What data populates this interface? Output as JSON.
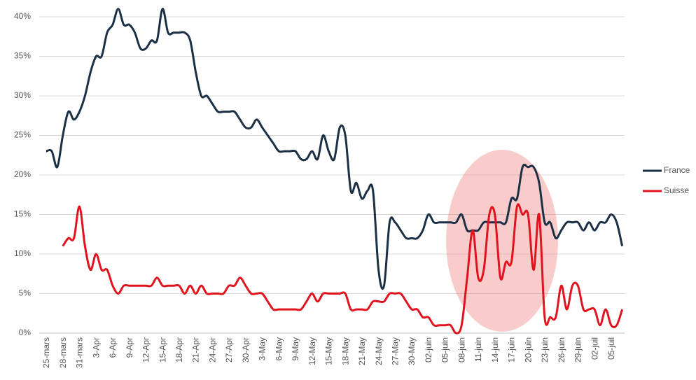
{
  "chart_data": {
    "type": "line",
    "categories": [
      "25-mars",
      null,
      null,
      "28-mars",
      null,
      null,
      "31-mars",
      null,
      null,
      "3-Apr",
      null,
      null,
      "6-Apr",
      null,
      null,
      "9-Apr",
      null,
      null,
      "12-Apr",
      null,
      null,
      "15-Apr",
      null,
      null,
      "18-Apr",
      null,
      null,
      "21-Apr",
      null,
      null,
      "24-Apr",
      null,
      null,
      "27-Apr",
      null,
      null,
      "30-Apr",
      null,
      null,
      "3-May",
      null,
      null,
      "6-May",
      null,
      null,
      "9-May",
      null,
      null,
      "12-May",
      null,
      null,
      "15-May",
      null,
      null,
      "18-May",
      null,
      null,
      "21-May",
      null,
      null,
      "24-May",
      null,
      null,
      "27-May",
      null,
      null,
      "30-May",
      null,
      null,
      "02-juin",
      null,
      null,
      "05-juin",
      null,
      null,
      "08-juin",
      null,
      null,
      "11-juin",
      null,
      null,
      "14-juin",
      null,
      null,
      "17-juin",
      null,
      null,
      "20-juin",
      null,
      null,
      "23-juin",
      null,
      null,
      "26-juin",
      null,
      null,
      "29-juin",
      null,
      null,
      "02-juil",
      null,
      null,
      "05-juil",
      null,
      null
    ],
    "series": [
      {
        "name": "France",
        "color": "#1b2f45",
        "values": [
          23,
          23,
          21,
          25,
          28,
          27,
          28,
          30,
          33,
          35,
          35,
          38,
          39,
          41,
          39,
          39,
          38,
          36,
          36,
          37,
          37,
          41,
          38,
          38,
          38,
          38,
          37,
          33,
          30,
          30,
          29,
          28,
          28,
          28,
          28,
          27,
          26,
          26,
          27,
          26,
          25,
          24,
          23,
          23,
          23,
          23,
          22,
          22,
          23,
          22,
          25,
          23,
          22,
          26,
          25,
          18,
          19,
          17,
          18,
          18,
          8,
          6,
          14,
          14,
          13,
          12,
          12,
          12,
          13,
          15,
          14,
          14,
          14,
          14,
          14,
          15,
          13,
          13,
          13,
          14,
          14,
          14,
          14,
          14,
          17,
          17,
          21,
          21,
          21,
          19,
          14,
          14,
          12,
          13,
          14,
          14,
          14,
          13,
          14,
          13,
          14,
          14,
          15,
          14,
          11
        ]
      },
      {
        "name": "Suisse",
        "color": "#e0141e",
        "values": [
          null,
          null,
          null,
          11,
          12,
          12,
          16,
          11,
          8,
          10,
          8,
          8,
          6,
          5,
          6,
          6,
          6,
          6,
          6,
          6,
          7,
          6,
          6,
          6,
          6,
          5,
          6,
          5,
          6,
          5,
          5,
          5,
          5,
          6,
          6,
          7,
          6,
          5,
          5,
          5,
          4,
          3,
          3,
          3,
          3,
          3,
          3,
          4,
          5,
          4,
          5,
          5,
          5,
          5,
          5,
          3,
          3,
          3,
          3,
          4,
          4,
          4,
          5,
          5,
          5,
          4,
          3,
          3,
          2,
          2,
          1,
          1,
          1,
          1,
          0,
          1,
          7,
          13,
          7,
          8,
          15,
          15,
          7,
          9,
          9,
          16,
          15,
          15,
          8,
          15,
          2,
          2,
          2,
          6,
          3,
          6,
          6,
          3,
          3,
          3,
          1,
          3,
          1,
          1,
          3
        ]
      }
    ],
    "ylim": [
      0,
      40
    ],
    "yticks": [
      {
        "value": 0,
        "label": "0%"
      },
      {
        "value": 5,
        "label": "5%"
      },
      {
        "value": 10,
        "label": "10%"
      },
      {
        "value": 15,
        "label": "15%"
      },
      {
        "value": 20,
        "label": "20%"
      },
      {
        "value": 25,
        "label": "25%"
      },
      {
        "value": 30,
        "label": "30%"
      },
      {
        "value": 35,
        "label": "35%"
      },
      {
        "value": 40,
        "label": "40%"
      }
    ],
    "grid": true,
    "legend": "right"
  }
}
